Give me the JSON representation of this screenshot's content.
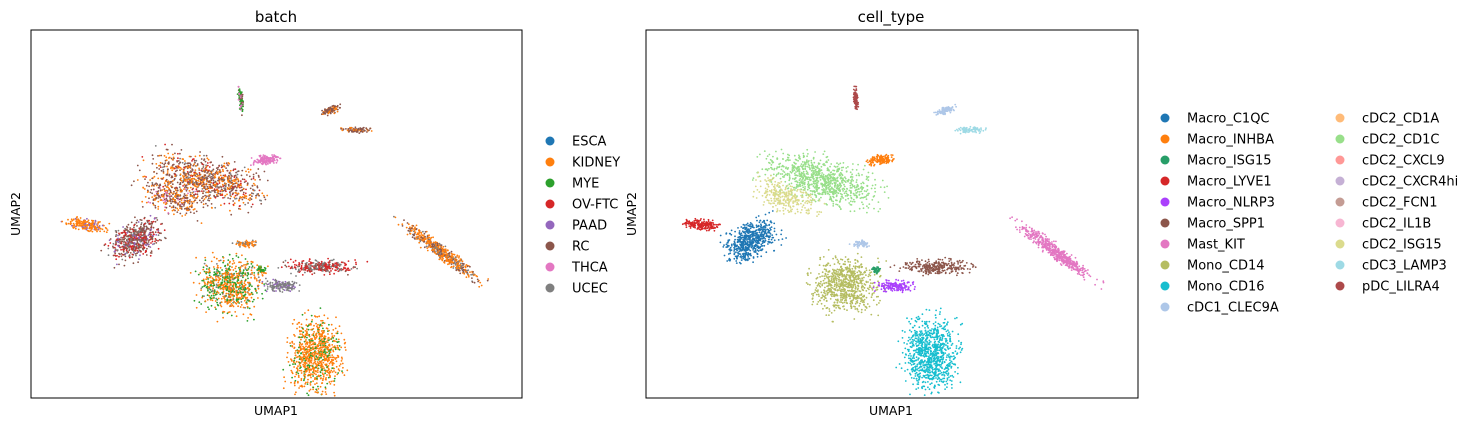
{
  "chart_data": [
    {
      "type": "scatter",
      "title": "batch",
      "xlabel": "UMAP1",
      "ylabel": "UMAP2",
      "grid": false,
      "ticks": false,
      "legend_placement": "right",
      "series": [
        {
          "name": "ESCA",
          "color": "#1f77b4"
        },
        {
          "name": "KIDNEY",
          "color": "#ff7f0e"
        },
        {
          "name": "MYE",
          "color": "#2ca02c"
        },
        {
          "name": "OV-FTC",
          "color": "#d62728"
        },
        {
          "name": "PAAD",
          "color": "#9467bd"
        },
        {
          "name": "RC",
          "color": "#8c564b"
        },
        {
          "name": "THCA",
          "color": "#e377c2"
        },
        {
          "name": "UCEC",
          "color": "#7f7f7f"
        }
      ]
    },
    {
      "type": "scatter",
      "title": "cell_type",
      "xlabel": "UMAP1",
      "ylabel": "UMAP2",
      "grid": false,
      "ticks": false,
      "legend_placement": "right",
      "series": [
        {
          "name": "Macro_C1QC",
          "color": "#1f77b4"
        },
        {
          "name": "Macro_INHBA",
          "color": "#ff7f0e"
        },
        {
          "name": "Macro_ISG15",
          "color": "#279e68"
        },
        {
          "name": "Macro_LYVE1",
          "color": "#d62728"
        },
        {
          "name": "Macro_NLRP3",
          "color": "#aa40fc"
        },
        {
          "name": "Macro_SPP1",
          "color": "#8c564b"
        },
        {
          "name": "Mast_KIT",
          "color": "#e377c2"
        },
        {
          "name": "Mono_CD14",
          "color": "#b5bd61"
        },
        {
          "name": "Mono_CD16",
          "color": "#17becf"
        },
        {
          "name": "cDC1_CLEC9A",
          "color": "#aec7e8"
        },
        {
          "name": "cDC2_CD1A",
          "color": "#ffbb78"
        },
        {
          "name": "cDC2_CD1C",
          "color": "#98df8a"
        },
        {
          "name": "cDC2_CXCL9",
          "color": "#ff9896"
        },
        {
          "name": "cDC2_CXCR4hi",
          "color": "#c5b0d5"
        },
        {
          "name": "cDC2_FCN1",
          "color": "#c49c94"
        },
        {
          "name": "cDC2_IL1B",
          "color": "#f7b6d2"
        },
        {
          "name": "cDC2_ISG15",
          "color": "#dbdb8d"
        },
        {
          "name": "cDC3_LAMP3",
          "color": "#9edae5"
        },
        {
          "name": "pDC_LILRA4",
          "color": "#ad494a"
        }
      ]
    }
  ]
}
